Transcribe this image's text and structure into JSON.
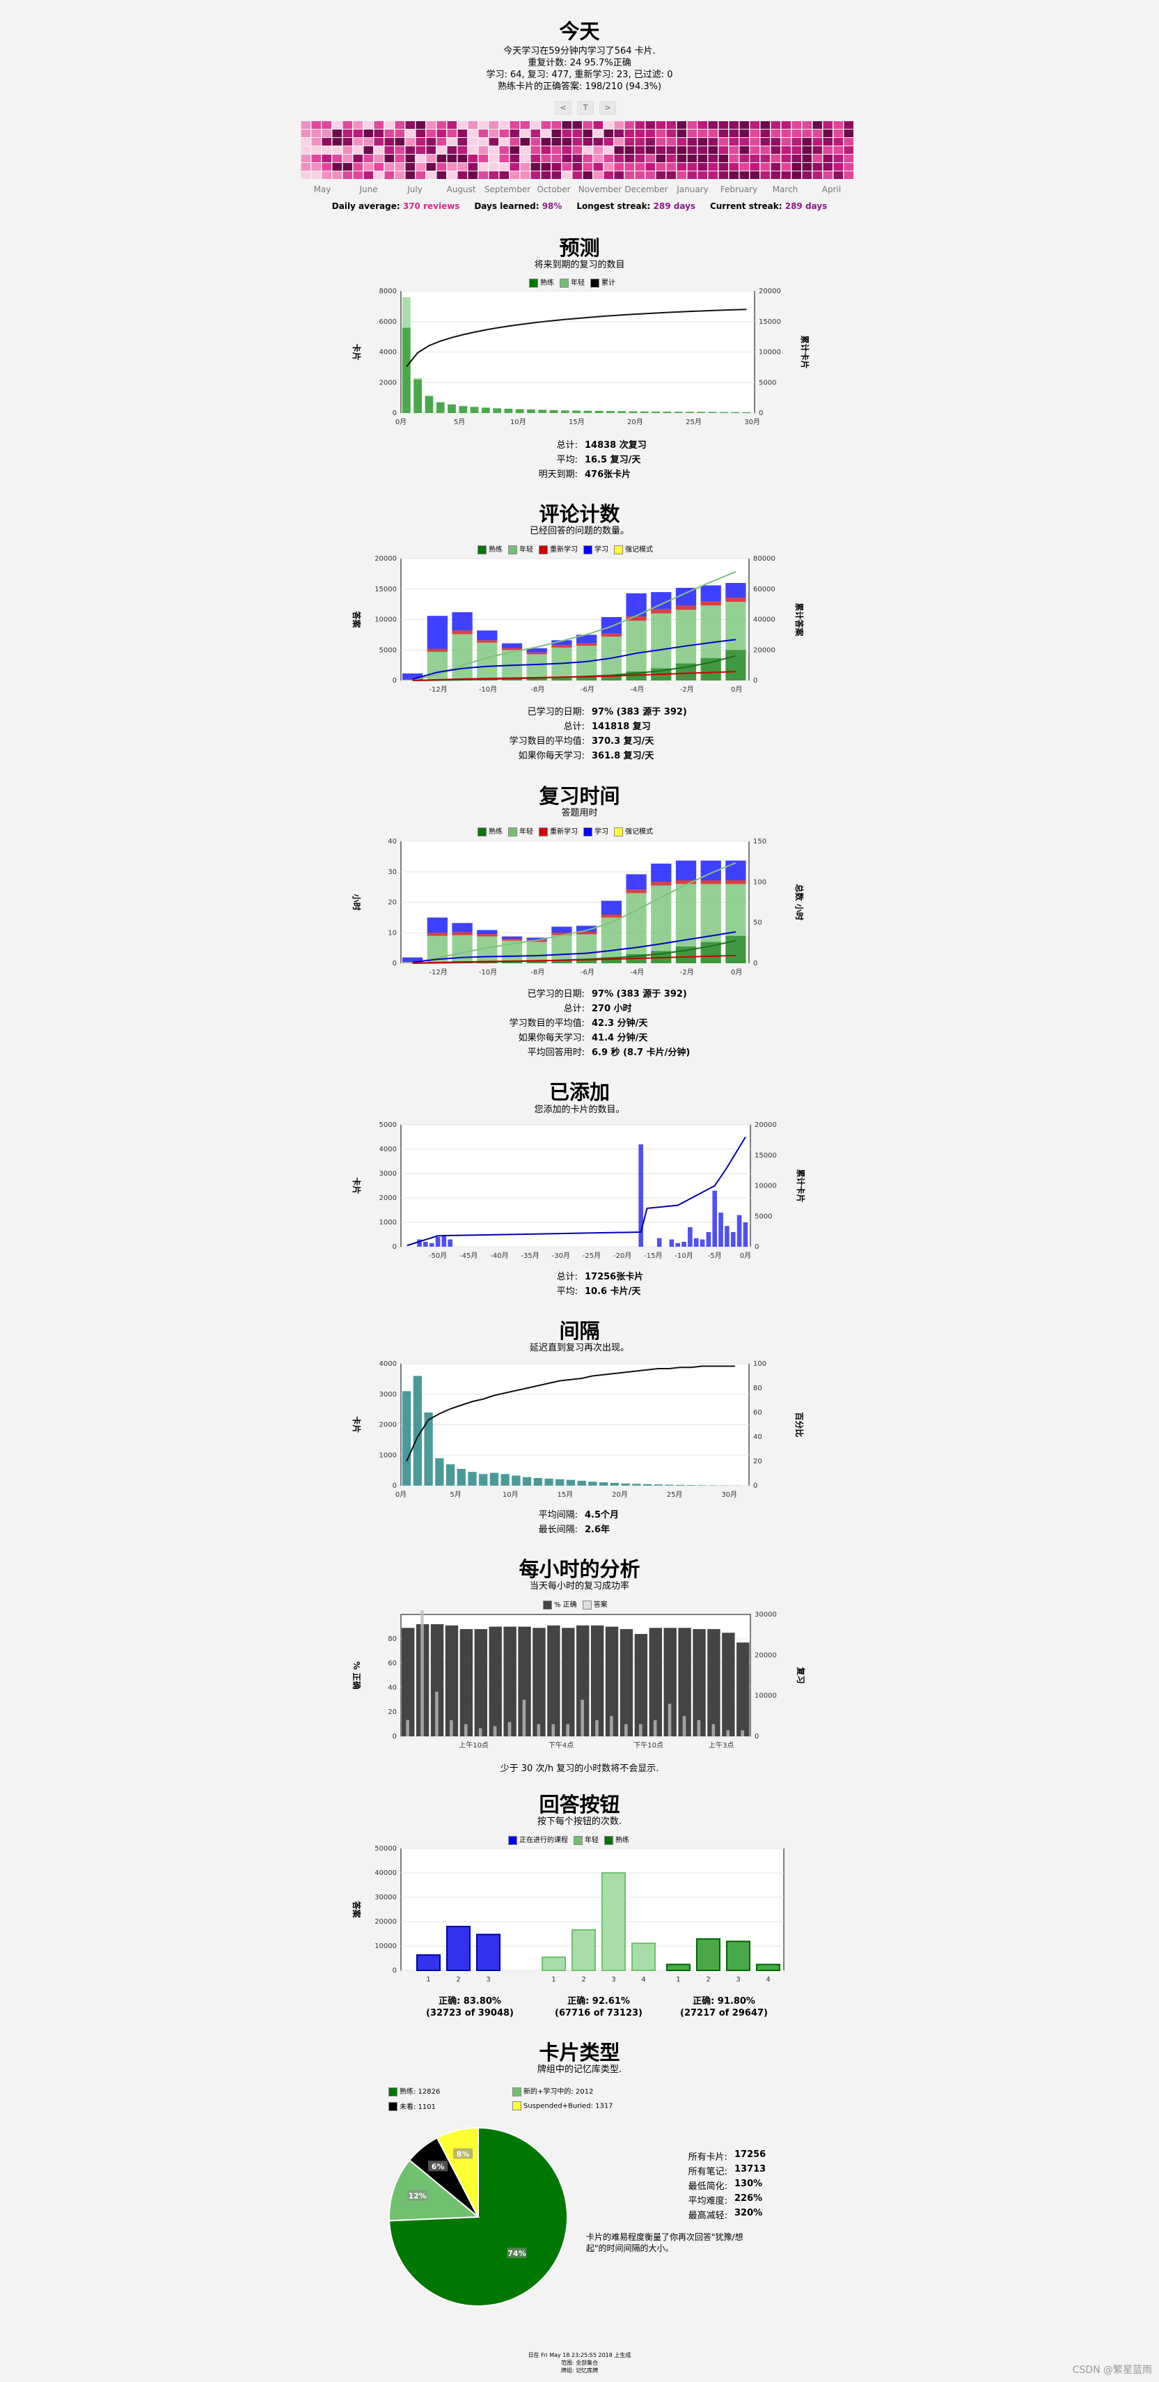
{
  "today": {
    "title": "今天",
    "line1": "今天学习在59分钟内学习了564 卡片.",
    "line2": "重复计数: 24 95.7%正确",
    "line3": "学习: 64, 复习: 477, 重新学习: 23, 已过滤: 0",
    "line4": "熟练卡片的正确答案:  198/210 (94.3%)",
    "nav": [
      "<",
      "T",
      ">"
    ]
  },
  "heatmap": {
    "months": [
      "May",
      "June",
      "July",
      "August",
      "September",
      "October",
      "November",
      "December",
      "January",
      "February",
      "March",
      "April"
    ],
    "colors": [
      "#f9d1e4",
      "#f28fc0",
      "#e0479a",
      "#bc1b7c",
      "#8f0e62",
      "#6b0a4a"
    ],
    "summary": {
      "daily_avg_label": "Daily average:",
      "daily_avg_value": "370 reviews",
      "days_learned_label": "Days learned:",
      "days_learned_value": "98%",
      "longest_label": "Longest streak:",
      "longest_value": "289 days",
      "current_label": "Current streak:",
      "current_value": "289 days"
    }
  },
  "forecast": {
    "title": "预测",
    "subtitle": "将来到期的复习的数目",
    "legend": [
      "熟练",
      "年轻",
      "累计"
    ],
    "ylabel": "卡片",
    "y2label": "累计卡片",
    "stats": [
      {
        "k": "总计:",
        "v": "14838 次复习"
      },
      {
        "k": "平均:",
        "v": "16.5 复习/天"
      },
      {
        "k": "明天到期:",
        "v": "476张卡片"
      }
    ]
  },
  "reviews": {
    "title": "评论计数",
    "subtitle": "已经回答的问题的数量。",
    "legend": [
      "熟练",
      "年轻",
      "重新学习",
      "学习",
      "强记模式"
    ],
    "ylabel": "答案",
    "y2label": "累计答案",
    "stats": [
      {
        "k": "已学习的日期:",
        "v": "97% (383 源于 392)"
      },
      {
        "k": "总计:",
        "v": "141818 复习"
      },
      {
        "k": "学习数目的平均值:",
        "v": "370.3 复习/天"
      },
      {
        "k": "如果你每天学习:",
        "v": "361.8 复习/天"
      }
    ]
  },
  "time": {
    "title": "复习时间",
    "subtitle": "答题用时",
    "legend": [
      "熟练",
      "年轻",
      "重新学习",
      "学习",
      "强记模式"
    ],
    "ylabel": "小时",
    "y2label": "总数 小时",
    "stats": [
      {
        "k": "已学习的日期:",
        "v": "97% (383 源于 392)"
      },
      {
        "k": "总计:",
        "v": "270 小时"
      },
      {
        "k": "学习数目的平均值:",
        "v": "42.3 分钟/天"
      },
      {
        "k": "如果你每天学习:",
        "v": "41.4 分钟/天"
      },
      {
        "k": "平均回答用时:",
        "v": "6.9 秒 (8.7 卡片/分钟)"
      }
    ]
  },
  "added": {
    "title": "已添加",
    "subtitle": "您添加的卡片的数目。",
    "ylabel": "卡片",
    "y2label": "累计卡片",
    "stats": [
      {
        "k": "总计:",
        "v": "17256张卡片"
      },
      {
        "k": "平均:",
        "v": "10.6 卡片/天"
      }
    ]
  },
  "intervals": {
    "title": "间隔",
    "subtitle": "延迟直到复习再次出现。",
    "ylabel": "卡片",
    "y2label": "百分比",
    "stats": [
      {
        "k": "平均间隔:",
        "v": "4.5个月"
      },
      {
        "k": "最长间隔:",
        "v": "2.6年"
      }
    ]
  },
  "hourly": {
    "title": "每小时的分析",
    "subtitle": "当天每小时的复习成功率",
    "legend": [
      "% 正确",
      "答案"
    ],
    "ylabel": "% 正确",
    "y2label": "复习",
    "note": "少于 30 次/h 复习的小时数将不会显示."
  },
  "buttons": {
    "title": "回答按钮",
    "subtitle": "按下每个按钮的次数.",
    "legend": [
      "正在进行的课程",
      "年轻",
      "熟练"
    ],
    "ylabel": "答案",
    "groups": [
      {
        "line1": "正确: 83.80%",
        "line2": "(32723 of 39048)"
      },
      {
        "line1": "正确: 92.61%",
        "line2": "(67716 of 73123)"
      },
      {
        "line1": "正确: 91.80%",
        "line2": "(27217 of 29647)"
      }
    ]
  },
  "types": {
    "title": "卡片类型",
    "subtitle": "牌组中的记忆库类型.",
    "legend": [
      {
        "label": "熟练: 12826",
        "color": "#007700"
      },
      {
        "label": "新的+学习中的: 2012",
        "color": "#70c070"
      },
      {
        "label": "未看: 1101",
        "color": "#000000"
      },
      {
        "label": "Suspended+Buried: 1317",
        "color": "#ffff33"
      }
    ],
    "stats": [
      {
        "k": "所有卡片:",
        "v": "17256"
      },
      {
        "k": "所有笔记:",
        "v": "13713"
      },
      {
        "k": "最低简化:",
        "v": "130%"
      },
      {
        "k": "平均难度:",
        "v": "226%"
      },
      {
        "k": "最高减轻:",
        "v": "320%"
      }
    ],
    "note1": "卡片的难易程度衡量了你再次回答\"犹豫/想",
    "note2": "起\"的时间间隔的大小。"
  },
  "footer": {
    "line1": "日在 Fri May 18 23:25:55 2018 上生成",
    "line2": "范围: 全部集合",
    "line3": "牌组: 记忆库牌"
  },
  "watermark": "CSDN @繁星蓝雨",
  "chart_data": [
    {
      "type": "bar",
      "name": "forecast",
      "x": [
        0,
        1,
        2,
        3,
        4,
        5,
        6,
        7,
        8,
        9,
        10,
        11,
        12,
        13,
        14,
        15,
        16,
        17,
        18,
        19,
        20,
        21,
        22,
        23,
        24,
        25,
        26,
        27,
        28,
        29,
        30
      ],
      "series": [
        {
          "name": "熟练",
          "values": [
            5600,
            2200,
            1100,
            700,
            550,
            450,
            400,
            350,
            310,
            280,
            250,
            230,
            210,
            190,
            170,
            160,
            150,
            140,
            130,
            120,
            110,
            100,
            95,
            90,
            85,
            80,
            75,
            70,
            65,
            60,
            55
          ]
        },
        {
          "name": "年轻",
          "values": [
            2000,
            100,
            60,
            40,
            30,
            25,
            20,
            18,
            15,
            12,
            10,
            10,
            8,
            8,
            7,
            7,
            6,
            6,
            5,
            5,
            5,
            4,
            4,
            4,
            3,
            3,
            3,
            3,
            3,
            3,
            2
          ]
        }
      ],
      "cumulative": [
        7600,
        9900,
        11060,
        11800,
        12380,
        12855,
        13275,
        13643,
        13968,
        14260,
        14520,
        14760,
        14978,
        15176,
        15353,
        15520,
        15676,
        15822,
        15957,
        16082,
        16197,
        16301,
        16400,
        16494,
        16582,
        16665,
        16743,
        16816,
        16884,
        16947,
        17004
      ],
      "xticks": [
        "0月",
        "5月",
        "10月",
        "15月",
        "20月",
        "25月",
        "30月"
      ],
      "ylim": [
        0,
        8000
      ],
      "y2lim": [
        0,
        20000
      ],
      "yticks": [
        0,
        2000,
        4000,
        6000,
        8000
      ],
      "y2ticks": [
        0,
        5000,
        10000,
        15000,
        20000
      ]
    },
    {
      "type": "bar",
      "name": "reviews",
      "x": [
        -13,
        -12,
        -11,
        -10,
        -9,
        -8,
        -7,
        -6,
        -5,
        -4,
        -3,
        -2,
        -1,
        0
      ],
      "series": [
        {
          "name": "熟练",
          "values": [
            0,
            200,
            300,
            400,
            500,
            500,
            600,
            700,
            900,
            1500,
            2000,
            2800,
            3700,
            5000
          ]
        },
        {
          "name": "年轻",
          "values": [
            100,
            4500,
            7300,
            5800,
            4500,
            3800,
            4800,
            5000,
            6300,
            8300,
            9000,
            8800,
            8600,
            7900
          ]
        },
        {
          "name": "重新学习",
          "values": [
            50,
            500,
            600,
            400,
            300,
            300,
            400,
            400,
            500,
            700,
            700,
            700,
            700,
            700
          ]
        },
        {
          "name": "学习",
          "values": [
            1000,
            5400,
            3000,
            1600,
            800,
            700,
            800,
            1400,
            2700,
            3800,
            2800,
            2900,
            2600,
            2400
          ]
        },
        {
          "name": "强记模式",
          "values": [
            0,
            0,
            0,
            0,
            0,
            0,
            0,
            0,
            0,
            0,
            0,
            0,
            0,
            0
          ]
        }
      ],
      "xticks": [
        "-12月",
        "-10月",
        "-8月",
        "-6月",
        "-4月",
        "-2月",
        "0月"
      ],
      "ylim": [
        0,
        20000
      ],
      "y2lim": [
        0,
        80000
      ],
      "yticks": [
        0,
        5000,
        10000,
        15000,
        20000
      ],
      "y2ticks": [
        0,
        20000,
        40000,
        60000,
        80000
      ]
    },
    {
      "type": "bar",
      "name": "time",
      "x": [
        -13,
        -12,
        -11,
        -10,
        -9,
        -8,
        -7,
        -6,
        -5,
        -4,
        -3,
        -2,
        -1,
        0
      ],
      "series": [
        {
          "name": "熟练",
          "values": [
            0,
            0.5,
            0.7,
            0.8,
            0.9,
            1,
            1.2,
            1.5,
            2,
            3,
            4,
            5.5,
            7,
            9
          ]
        },
        {
          "name": "年轻",
          "values": [
            0.3,
            8.5,
            8.5,
            8,
            6.5,
            6,
            8,
            8,
            13,
            20,
            21.5,
            20.5,
            19,
            17
          ]
        },
        {
          "name": "重新学习",
          "values": [
            0.1,
            1,
            1,
            0.8,
            0.6,
            0.6,
            0.8,
            0.8,
            1,
            1.2,
            1.2,
            1.2,
            1.2,
            1.2
          ]
        },
        {
          "name": "学习",
          "values": [
            1.5,
            5,
            3,
            1.3,
            0.8,
            0.8,
            2,
            2,
            4.5,
            5,
            6,
            6.5,
            6.5,
            6.5
          ]
        },
        {
          "name": "强记模式",
          "values": [
            0,
            0,
            0,
            0,
            0,
            0,
            0,
            0,
            0,
            0,
            0,
            0,
            0,
            0
          ]
        }
      ],
      "xticks": [
        "-12月",
        "-10月",
        "-8月",
        "-6月",
        "-4月",
        "-2月",
        "0月"
      ],
      "ylim": [
        0,
        40
      ],
      "y2lim": [
        0,
        150
      ],
      "yticks": [
        0,
        10,
        20,
        30,
        40
      ],
      "y2ticks": [
        0,
        50,
        100,
        150
      ]
    },
    {
      "type": "bar",
      "name": "added",
      "x": [
        -53,
        -52,
        -51,
        -50,
        -49,
        -48,
        -17,
        -14,
        -12,
        -11,
        -10,
        -9,
        -8,
        -7,
        -6,
        -5,
        -4,
        -3,
        -2,
        -1,
        0
      ],
      "values": [
        300,
        200,
        150,
        400,
        450,
        300,
        4200,
        350,
        300,
        150,
        200,
        800,
        350,
        300,
        600,
        2300,
        1400,
        850,
        600,
        1300,
        1000
      ],
      "cumulative_points": [
        [
          -55,
          200
        ],
        [
          -50,
          1800
        ],
        [
          -17,
          2400
        ],
        [
          -16,
          6300
        ],
        [
          -11,
          6800
        ],
        [
          -5,
          10000
        ],
        [
          -3,
          13000
        ],
        [
          0,
          18000
        ]
      ],
      "xticks": [
        "-50月",
        "-45月",
        "-40月",
        "-35月",
        "-30月",
        "-25月",
        "-20月",
        "-15月",
        "-10月",
        "-5月",
        "0月"
      ],
      "ylim": [
        0,
        5000
      ],
      "y2lim": [
        0,
        20000
      ],
      "yticks": [
        0,
        1000,
        2000,
        3000,
        4000,
        5000
      ],
      "y2ticks": [
        0,
        5000,
        10000,
        15000,
        20000
      ]
    },
    {
      "type": "bar",
      "name": "intervals",
      "x": [
        0,
        1,
        2,
        3,
        4,
        5,
        6,
        7,
        8,
        9,
        10,
        11,
        12,
        13,
        14,
        15,
        16,
        17,
        18,
        19,
        20,
        21,
        22,
        23,
        24,
        25,
        26,
        27,
        28,
        29,
        30
      ],
      "values": [
        3100,
        3600,
        2400,
        900,
        700,
        550,
        450,
        380,
        420,
        380,
        330,
        280,
        250,
        230,
        210,
        190,
        160,
        130,
        110,
        90,
        70,
        60,
        50,
        40,
        30,
        25,
        20,
        15,
        10,
        8,
        5
      ],
      "cumulative_pct": [
        20,
        40,
        54,
        59,
        63,
        66,
        69,
        71,
        74,
        76,
        78,
        80,
        82,
        84,
        86,
        87,
        88,
        90,
        91,
        92,
        93,
        94,
        95,
        96,
        96,
        97,
        97,
        98,
        98,
        98,
        98
      ],
      "xticks": [
        "0月",
        "5月",
        "10月",
        "15月",
        "20月",
        "25月",
        "30月"
      ],
      "ylim": [
        0,
        4000
      ],
      "y2lim": [
        0,
        100
      ],
      "yticks": [
        0,
        1000,
        2000,
        3000,
        4000
      ],
      "y2ticks": [
        0,
        20,
        40,
        60,
        80,
        100
      ]
    },
    {
      "type": "bar",
      "name": "hourly",
      "x": [
        0,
        1,
        2,
        3,
        4,
        5,
        6,
        7,
        8,
        9,
        10,
        11,
        12,
        13,
        14,
        15,
        16,
        17,
        18,
        19,
        20,
        21,
        22,
        23
      ],
      "series": [
        {
          "name": "% 正确",
          "values": [
            89,
            92,
            92,
            91,
            88,
            88,
            90,
            90,
            90,
            89,
            91,
            89,
            91,
            91,
            90,
            88,
            84,
            89,
            89,
            89,
            88,
            88,
            85,
            77
          ]
        },
        {
          "name": "答案",
          "values": [
            4000,
            31000,
            11000,
            4000,
            3000,
            2000,
            2500,
            3500,
            9000,
            3000,
            3000,
            3000,
            9000,
            4000,
            5000,
            3000,
            3000,
            4000,
            8000,
            5000,
            4000,
            3000,
            1500,
            1500
          ]
        }
      ],
      "xticks": [
        "上午10点",
        "下午4点",
        "下午10点",
        "上午3点"
      ],
      "ylim": [
        0,
        100
      ],
      "y2lim": [
        0,
        30000
      ],
      "yticks": [
        0,
        20,
        40,
        60,
        80
      ],
      "y2ticks": [
        0,
        10000,
        20000,
        30000
      ]
    },
    {
      "type": "bar",
      "name": "buttons",
      "groups": [
        {
          "name": "正在进行的课程",
          "x": [
            "1",
            "2",
            "3"
          ],
          "values": [
            6325,
            18000,
            14723
          ]
        },
        {
          "name": "年轻",
          "x": [
            "1",
            "2",
            "3",
            "4"
          ],
          "values": [
            5407,
            16600,
            40000,
            11116
          ]
        },
        {
          "name": "熟练",
          "x": [
            "1",
            "2",
            "3",
            "4"
          ],
          "values": [
            2430,
            12900,
            11900,
            2417
          ]
        }
      ],
      "ylim": [
        0,
        50000
      ],
      "yticks": [
        0,
        10000,
        20000,
        30000,
        40000,
        50000
      ]
    },
    {
      "type": "pie",
      "name": "types",
      "labels": [
        "熟练",
        "新的+学习中的",
        "未看",
        "Suspended+Buried"
      ],
      "values": [
        12826,
        2012,
        1101,
        1317
      ],
      "percent_labels": [
        "74%",
        "12%",
        "6%",
        "8%"
      ]
    }
  ]
}
